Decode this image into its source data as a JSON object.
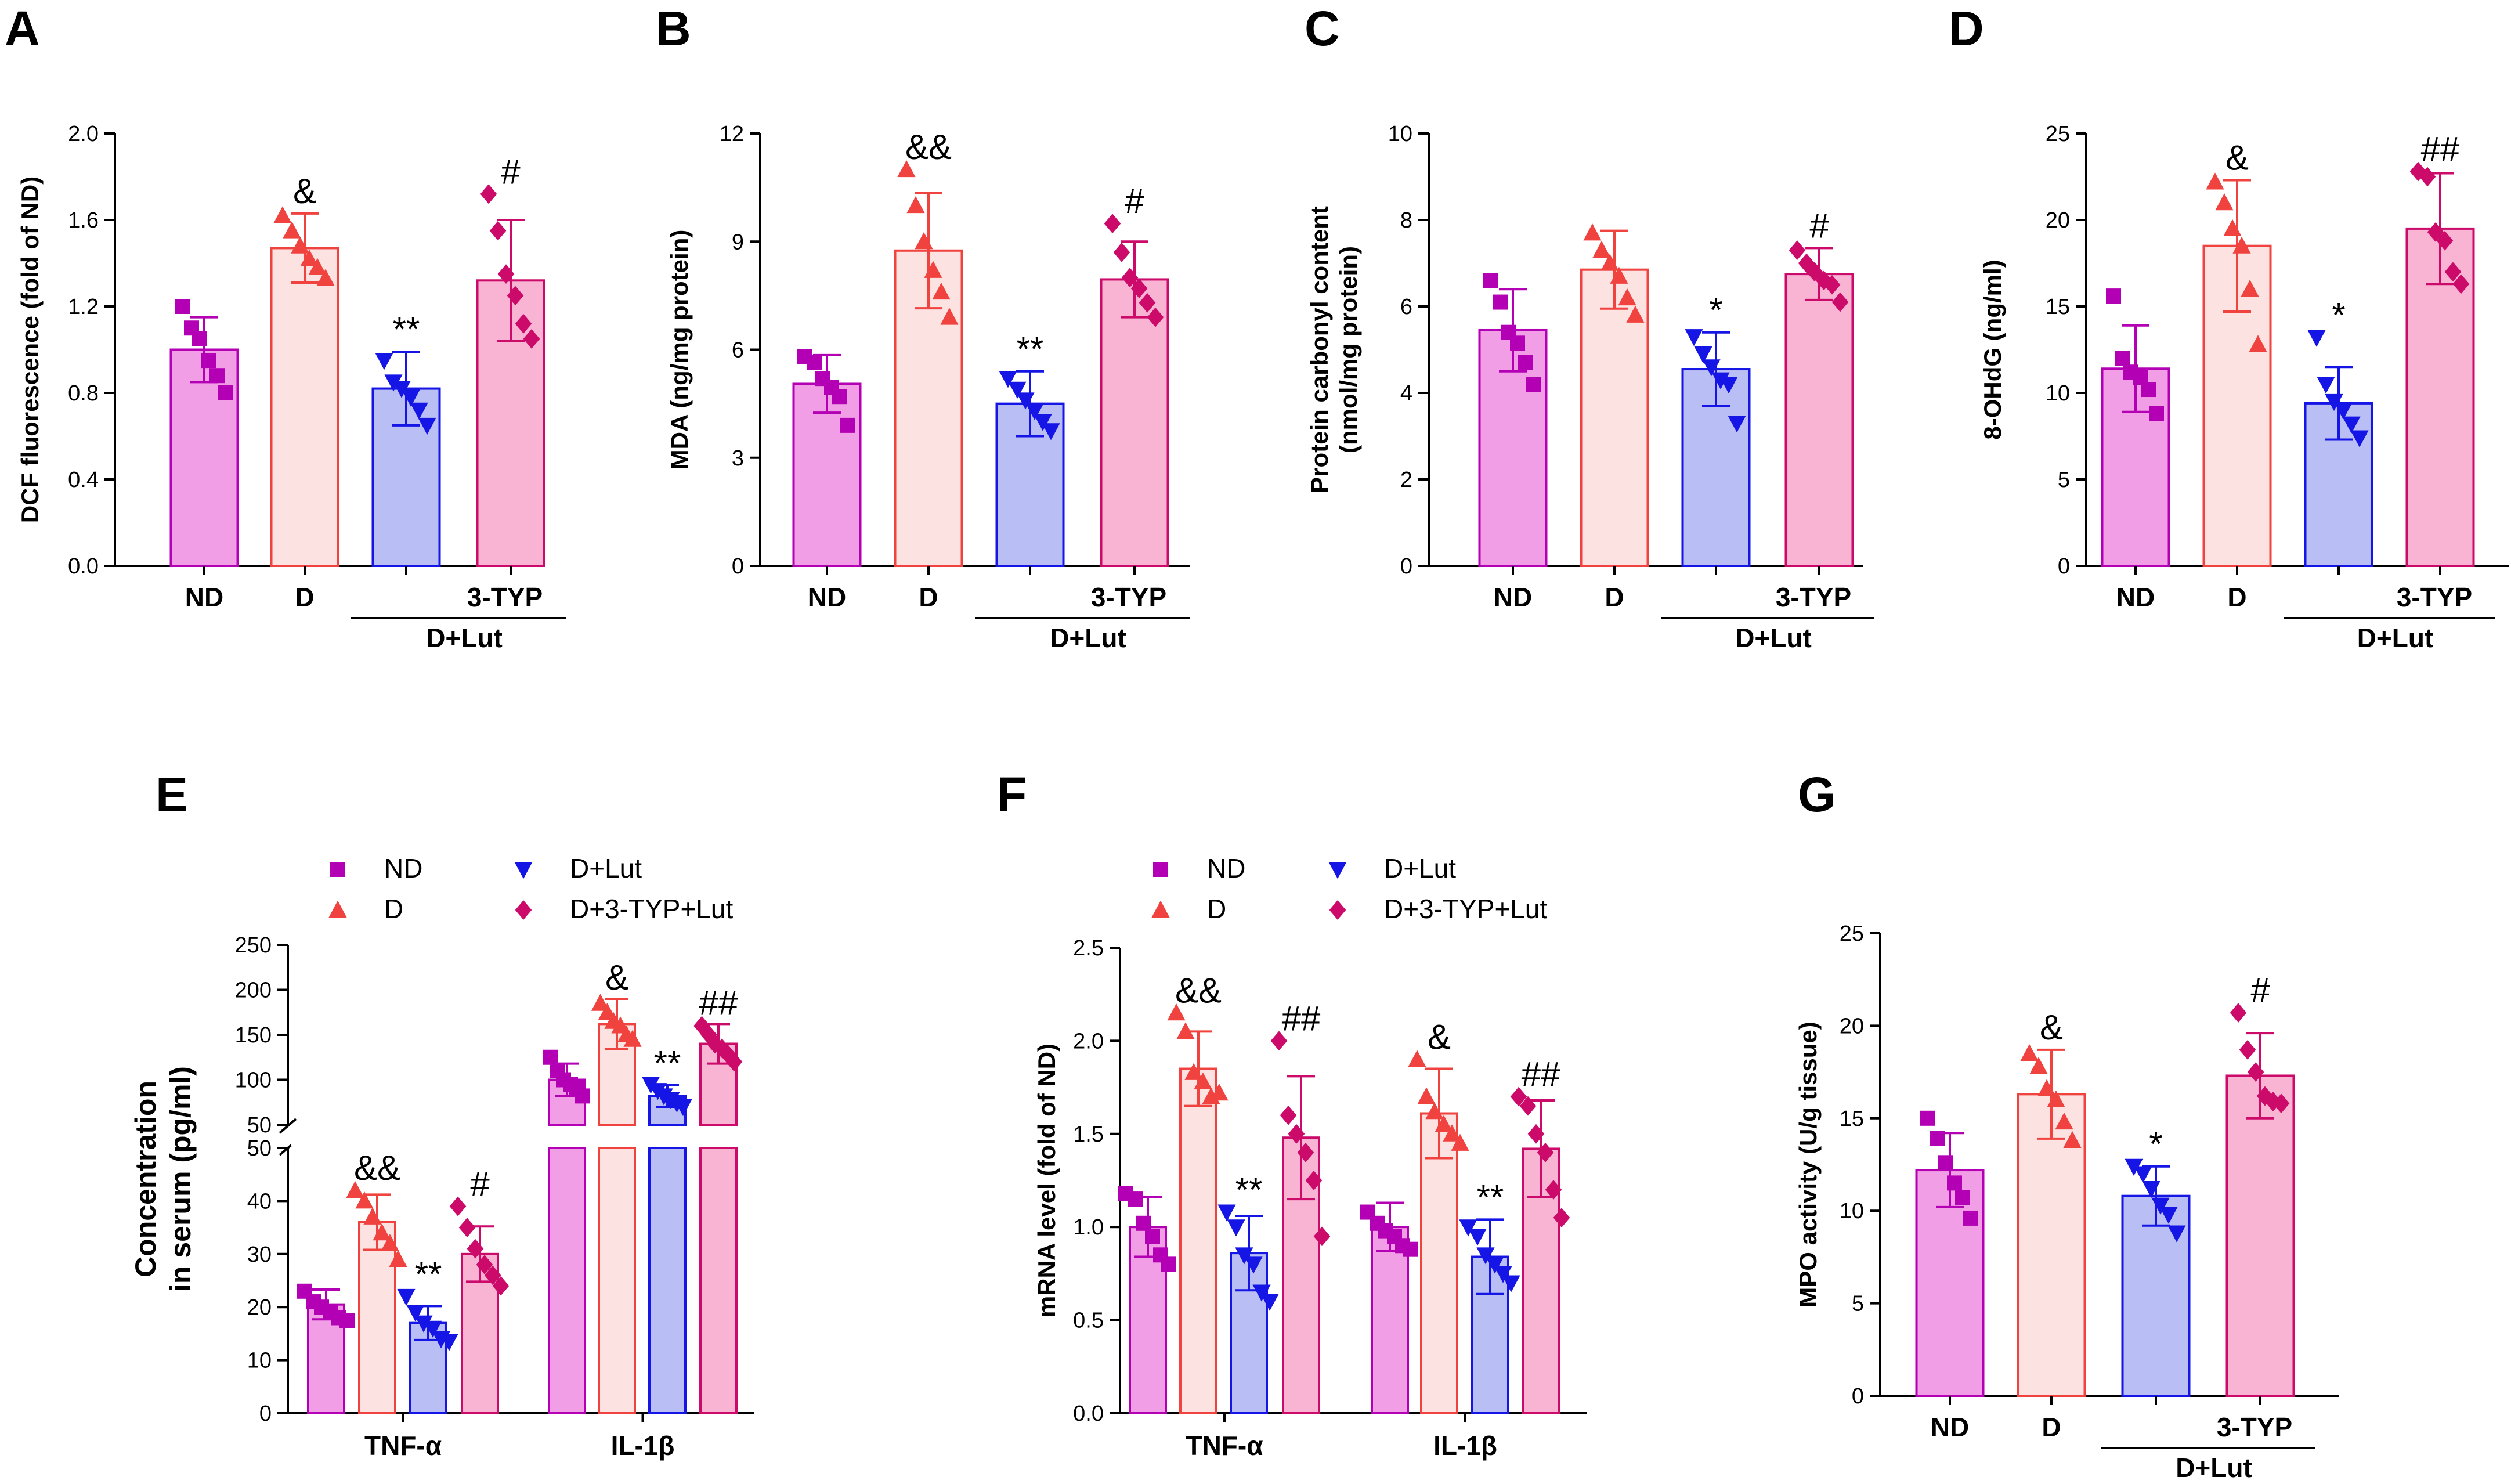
{
  "colors": {
    "ND": {
      "fill": "#f29ee6",
      "stroke": "#b400b4",
      "point": "#b400b4"
    },
    "D": {
      "fill": "#fde2e2",
      "stroke": "#f0433f",
      "point": "#f0433f"
    },
    "D+Lut": {
      "fill": "#b9bef5",
      "stroke": "#1515e6",
      "point": "#1515e6"
    },
    "D+3-TYP+Lut": {
      "fill": "#f9b4d4",
      "stroke": "#cc0a6a",
      "point": "#cc0a6a"
    }
  },
  "legend": {
    "series": [
      "ND",
      "D",
      "D+Lut",
      "D+3-TYP+Lut"
    ]
  },
  "chart_data": [
    {
      "panel": "A",
      "type": "bar",
      "ylabel": "DCF fluorescence (fold of ND)",
      "ylim": [
        0,
        2.0
      ],
      "yticks": [
        "0.0",
        "0.4",
        "0.8",
        "1.2",
        "1.6",
        "2.0"
      ],
      "categories": [
        "ND",
        "D",
        "",
        "3-TYP"
      ],
      "group_label": "D+Lut",
      "series": [
        "ND",
        "D",
        "D+Lut",
        "D+3-TYP+Lut"
      ],
      "values": [
        1.0,
        1.47,
        0.82,
        1.32
      ],
      "errors": [
        0.15,
        0.16,
        0.17,
        0.28
      ],
      "points": [
        [
          1.2,
          1.1,
          1.05,
          0.95,
          0.88,
          0.8
        ],
        [
          1.62,
          1.55,
          1.48,
          1.42,
          1.38,
          1.33
        ],
        [
          0.95,
          0.85,
          0.82,
          0.78,
          0.72,
          0.65
        ],
        [
          1.72,
          1.55,
          1.35,
          1.25,
          1.12,
          1.05
        ]
      ],
      "sig": [
        "",
        "&",
        "**",
        "#"
      ]
    },
    {
      "panel": "B",
      "type": "bar",
      "ylabel": "MDA (ng/mg protein)",
      "ylim": [
        0,
        12
      ],
      "yticks": [
        "0",
        "3",
        "6",
        "9",
        "12"
      ],
      "categories": [
        "ND",
        "D",
        "",
        "3-TYP"
      ],
      "group_label": "D+Lut",
      "series": [
        "ND",
        "D",
        "D+Lut",
        "D+3-TYP+Lut"
      ],
      "values": [
        5.05,
        8.75,
        4.5,
        7.95
      ],
      "errors": [
        0.8,
        1.6,
        0.9,
        1.05
      ],
      "points": [
        [
          5.8,
          5.65,
          5.2,
          4.95,
          4.7,
          3.9
        ],
        [
          11.0,
          10.0,
          9.0,
          8.2,
          7.6,
          6.9
        ],
        [
          5.2,
          4.9,
          4.6,
          4.3,
          4.0,
          3.75
        ],
        [
          9.5,
          8.7,
          8.0,
          7.7,
          7.3,
          6.9
        ]
      ],
      "sig": [
        "",
        "&&",
        "**",
        "#"
      ]
    },
    {
      "panel": "C",
      "type": "bar",
      "ylabel": "Protein carbonyl content",
      "ylabel2": "(nmol/mg protein)",
      "ylim": [
        0,
        10
      ],
      "yticks": [
        "0",
        "2",
        "4",
        "6",
        "8",
        "10"
      ],
      "categories": [
        "ND",
        "D",
        "",
        "3-TYP"
      ],
      "group_label": "D+Lut",
      "series": [
        "ND",
        "D",
        "D+Lut",
        "D+3-TYP+Lut"
      ],
      "values": [
        5.45,
        6.85,
        4.55,
        6.75
      ],
      "errors": [
        0.95,
        0.9,
        0.85,
        0.6
      ],
      "points": [
        [
          6.6,
          6.1,
          5.4,
          5.15,
          4.7,
          4.2
        ],
        [
          7.7,
          7.3,
          7.0,
          6.7,
          6.2,
          5.8
        ],
        [
          5.3,
          4.9,
          4.6,
          4.3,
          4.2,
          3.3
        ],
        [
          7.3,
          7.0,
          6.8,
          6.6,
          6.5,
          6.1
        ]
      ],
      "sig": [
        "",
        "",
        "*",
        "#"
      ]
    },
    {
      "panel": "D",
      "type": "bar",
      "ylabel": "8-OHdG (ng/ml)",
      "ylim": [
        0,
        25
      ],
      "yticks": [
        "0",
        "5",
        "10",
        "15",
        "20",
        "25"
      ],
      "categories": [
        "ND",
        "D",
        "",
        "3-TYP"
      ],
      "group_label": "D+Lut",
      "series": [
        "ND",
        "D",
        "D+Lut",
        "D+3-TYP+Lut"
      ],
      "values": [
        11.4,
        18.5,
        9.4,
        19.5
      ],
      "errors": [
        2.5,
        3.8,
        2.1,
        3.2
      ],
      "points": [
        [
          15.6,
          12.0,
          11.2,
          10.9,
          10.2,
          8.8
        ],
        [
          22.2,
          21.0,
          19.5,
          18.5,
          16.0,
          12.8
        ],
        [
          13.2,
          10.5,
          9.5,
          9.0,
          8.2,
          7.4
        ],
        [
          22.8,
          22.5,
          19.3,
          18.8,
          17.0,
          16.3
        ]
      ],
      "sig": [
        "",
        "&",
        "*",
        "##"
      ]
    },
    {
      "panel": "E",
      "type": "bar",
      "ylabel": "Concentration",
      "ylabel2": "in serum (pg/ml)",
      "break": {
        "lower": [
          0,
          50
        ],
        "upper": [
          50,
          250
        ]
      },
      "yticks_lower": [
        "0",
        "10",
        "20",
        "30",
        "40",
        "50"
      ],
      "yticks_upper": [
        "50",
        "100",
        "150",
        "200",
        "250"
      ],
      "categories": [
        "TNF-α",
        "IL-1β"
      ],
      "series": [
        "ND",
        "D",
        "D+Lut",
        "D+3-TYP+Lut"
      ],
      "values": [
        [
          20.5,
          36,
          17,
          30
        ],
        [
          100,
          162,
          82,
          140
        ]
      ],
      "errors": [
        [
          2.8,
          5.2,
          3.2,
          5.2
        ],
        [
          18,
          28,
          12,
          22
        ]
      ],
      "points": [
        [
          [
            23,
            21,
            20,
            19,
            18,
            17.5
          ],
          [
            42,
            40,
            37,
            34,
            32,
            29
          ],
          [
            22,
            19,
            17,
            16,
            14,
            13.5
          ],
          [
            39,
            35,
            31,
            28,
            26,
            24
          ]
        ],
        [
          [
            125,
            110,
            100,
            95,
            90,
            82
          ],
          [
            185,
            175,
            165,
            160,
            150,
            145
          ],
          [
            95,
            88,
            82,
            78,
            74,
            70
          ],
          [
            160,
            150,
            140,
            135,
            128,
            120
          ]
        ]
      ],
      "sig": [
        [
          "",
          "&&",
          "**",
          "#"
        ],
        [
          "",
          "&",
          "**",
          "##"
        ]
      ]
    },
    {
      "panel": "F",
      "type": "bar",
      "ylabel": "mRNA level (fold of ND)",
      "ylim": [
        0,
        2.5
      ],
      "yticks": [
        "0.0",
        "0.5",
        "1.0",
        "1.5",
        "2.0",
        "2.5"
      ],
      "categories": [
        "TNF-α",
        "IL-1β"
      ],
      "series": [
        "ND",
        "D",
        "D+Lut",
        "D+3-TYP+Lut"
      ],
      "values": [
        [
          1.0,
          1.85,
          0.86,
          1.48
        ],
        [
          1.0,
          1.61,
          0.84,
          1.42
        ]
      ],
      "errors": [
        [
          0.16,
          0.2,
          0.2,
          0.33
        ],
        [
          0.13,
          0.24,
          0.2,
          0.26
        ]
      ],
      "points": [
        [
          [
            1.18,
            1.15,
            1.02,
            0.95,
            0.85,
            0.8
          ],
          [
            2.15,
            2.05,
            1.83,
            1.78,
            1.7,
            1.72
          ],
          [
            1.08,
            1.0,
            0.85,
            0.8,
            0.65,
            0.6
          ],
          [
            2.0,
            1.6,
            1.5,
            1.4,
            1.25,
            0.95
          ]
        ],
        [
          [
            1.08,
            1.02,
            0.98,
            0.95,
            0.9,
            0.88
          ],
          [
            1.9,
            1.7,
            1.62,
            1.55,
            1.5,
            1.45
          ],
          [
            1.0,
            0.95,
            0.85,
            0.8,
            0.75,
            0.7
          ],
          [
            1.7,
            1.65,
            1.5,
            1.4,
            1.2,
            1.05
          ]
        ]
      ],
      "sig": [
        [
          "",
          "&&",
          "**",
          "##"
        ],
        [
          "",
          "&",
          "**",
          "##"
        ]
      ]
    },
    {
      "panel": "G",
      "type": "bar",
      "ylabel": "MPO activity (U/g tissue)",
      "ylim": [
        0,
        25
      ],
      "yticks": [
        "0",
        "5",
        "10",
        "15",
        "20",
        "25"
      ],
      "categories": [
        "ND",
        "D",
        "",
        "3-TYP"
      ],
      "group_label": "D+Lut",
      "series": [
        "ND",
        "D",
        "D+Lut",
        "D+3-TYP+Lut"
      ],
      "values": [
        12.2,
        16.3,
        10.8,
        17.3
      ],
      "errors": [
        2.0,
        2.4,
        1.6,
        2.3
      ],
      "points": [
        [
          15.0,
          13.9,
          12.6,
          11.5,
          10.7,
          9.6
        ],
        [
          18.5,
          17.8,
          16.6,
          16.0,
          14.8,
          13.8
        ],
        [
          12.4,
          12.0,
          11.2,
          10.3,
          9.8,
          8.8
        ],
        [
          20.7,
          18.7,
          17.5,
          16.2,
          15.9,
          15.8
        ]
      ],
      "sig": [
        "",
        "&",
        "*",
        "#"
      ]
    }
  ]
}
